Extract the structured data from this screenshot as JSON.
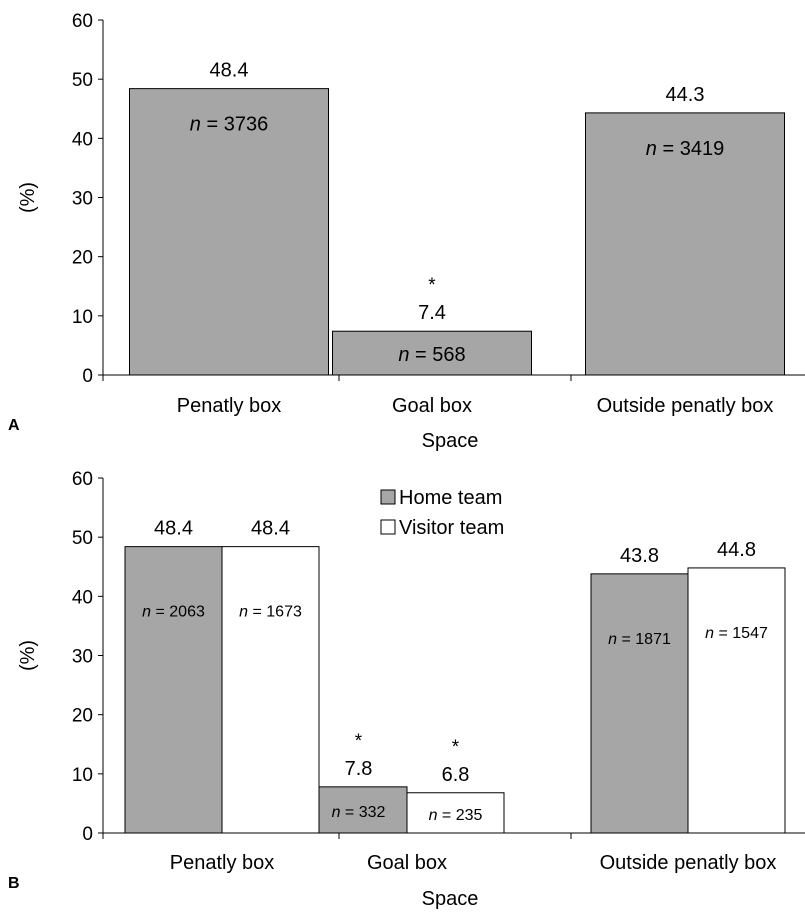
{
  "colors": {
    "home": "#a6a6a6",
    "visitor": "#ffffff",
    "stroke": "#000000"
  },
  "chart_data": [
    {
      "type": "bar",
      "panel_label": "A",
      "categories": [
        "Penatly box",
        "Goal box",
        "Outside penatly box"
      ],
      "values": [
        48.4,
        7.4,
        44.3
      ],
      "value_labels": [
        "48.4",
        "7.4",
        "44.3"
      ],
      "n_labels": [
        {
          "prefix": "n",
          "rest": " = 3736"
        },
        {
          "prefix": "n",
          "rest": " = 568"
        },
        {
          "prefix": "n",
          "rest": " = 3419"
        }
      ],
      "significance": [
        "",
        "*",
        ""
      ],
      "xlabel": "Space",
      "ylabel": "(%)",
      "ylim": [
        0,
        60
      ],
      "yticks": [
        "0",
        "10",
        "20",
        "30",
        "40",
        "50",
        "60"
      ],
      "grid": false
    },
    {
      "type": "bar",
      "panel_label": "B",
      "categories": [
        "Penatly box",
        "Goal box",
        "Outside penatly box"
      ],
      "series": [
        {
          "name": "Home team",
          "values": [
            48.4,
            7.8,
            43.8
          ],
          "value_labels": [
            "48.4",
            "7.8",
            "43.8"
          ],
          "n_labels": [
            {
              "prefix": "n",
              "rest": " = 2063"
            },
            {
              "prefix": "n",
              "rest": " = 332"
            },
            {
              "prefix": "n",
              "rest": " = 1871"
            }
          ],
          "significance": [
            "",
            "*",
            ""
          ]
        },
        {
          "name": "Visitor team",
          "values": [
            48.4,
            6.8,
            44.8
          ],
          "value_labels": [
            "48.4",
            "6.8",
            "44.8"
          ],
          "n_labels": [
            {
              "prefix": "n",
              "rest": " = 1673"
            },
            {
              "prefix": "n",
              "rest": " = 235"
            },
            {
              "prefix": "n",
              "rest": " = 1547"
            }
          ],
          "significance": [
            "",
            "*",
            ""
          ]
        }
      ],
      "xlabel": "Space",
      "ylabel": "(%)",
      "ylim": [
        0,
        60
      ],
      "yticks": [
        "0",
        "10",
        "20",
        "30",
        "40",
        "50",
        "60"
      ],
      "legend_position": "top-center",
      "grid": false
    }
  ]
}
